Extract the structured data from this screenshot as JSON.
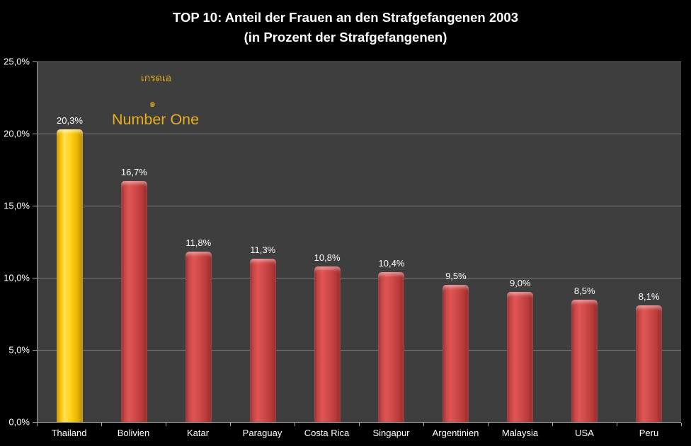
{
  "title": {
    "line1": "TOP 10: Anteil der Frauen an den Strafgefangenen 2003",
    "line2": "(in Prozent der Strafgefangenen)"
  },
  "annotations": {
    "thai_line1": "เกรดเอ",
    "thai_line2": "๑",
    "english": "Number One"
  },
  "chart_data": {
    "type": "bar",
    "title": "TOP 10: Anteil der Frauen an den Strafgefangenen 2003 (in Prozent der Strafgefangenen)",
    "categories": [
      "Thailand",
      "Bolivien",
      "Katar",
      "Paraguay",
      "Costa Rica",
      "Singapur",
      "Argentinien",
      "Malaysia",
      "USA",
      "Peru"
    ],
    "values": [
      20.3,
      16.7,
      11.8,
      11.3,
      10.8,
      10.4,
      9.5,
      9.0,
      8.5,
      8.1
    ],
    "value_labels": [
      "20,3%",
      "16,7%",
      "11,8%",
      "11,3%",
      "10,8%",
      "10,4%",
      "9,5%",
      "9,0%",
      "8,5%",
      "8,1%"
    ],
    "xlabel": "",
    "ylabel": "",
    "ylim": [
      0,
      25
    ],
    "ytick_values": [
      0,
      5,
      10,
      15,
      20,
      25
    ],
    "ytick_labels": [
      "0,0%",
      "5,0%",
      "10,0%",
      "15,0%",
      "20,0%",
      "25,0%"
    ],
    "grid": true,
    "legend": "none",
    "highlight_index": 0,
    "colors": {
      "page_bg": "#000000",
      "plot_bg": "#3e3e3e",
      "gridline": "#8f8f8f",
      "axis_line": "#a6a6a6",
      "text": "#ffffff",
      "bar_default": "#cf4545",
      "bar_highlight": "#ffd011",
      "annotation_gold": "#e6ad21"
    }
  }
}
